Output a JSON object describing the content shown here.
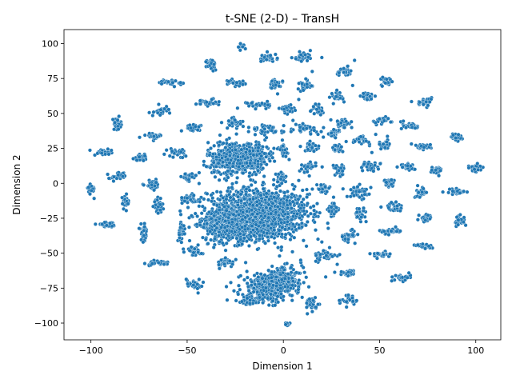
{
  "chart_data": {
    "type": "scatter",
    "title": "t-SNE (2-D) – TransH",
    "xlabel": "Dimension 1",
    "ylabel": "Dimension 2",
    "xlim": [
      -114,
      113
    ],
    "ylim": [
      -112,
      110
    ],
    "xticks": [
      -100,
      -50,
      0,
      50,
      100
    ],
    "yticks": [
      -100,
      -75,
      -50,
      -25,
      0,
      25,
      50,
      75,
      100
    ],
    "xtick_labels": [
      "−100",
      "−50",
      "0",
      "50",
      "100"
    ],
    "ytick_labels": [
      "−100",
      "−75",
      "−50",
      "−25",
      "0",
      "25",
      "50",
      "75",
      "100"
    ],
    "grid": false,
    "legend": "none",
    "marker_color": "#1f77b4",
    "marker_edge": "#ffffff",
    "clusters": [
      {
        "cx": -13,
        "cy": -22,
        "sx": 13,
        "sy": 9,
        "n": 1400
      },
      {
        "cx": -28,
        "cy": -30,
        "sx": 7,
        "sy": 6,
        "n": 350
      },
      {
        "cx": -25,
        "cy": 18,
        "sx": 7,
        "sy": 6,
        "n": 450
      },
      {
        "cx": -15,
        "cy": 20,
        "sx": 4,
        "sy": 5,
        "n": 140
      },
      {
        "cx": -8,
        "cy": -75,
        "sx": 7,
        "sy": 5,
        "n": 320
      },
      {
        "cx": -18,
        "cy": -84,
        "sx": 3,
        "sy": 2,
        "n": 60
      },
      {
        "cx": 0,
        "cy": -68,
        "sx": 5,
        "sy": 4,
        "n": 160
      },
      {
        "cx": -100,
        "cy": -4,
        "sx": 1,
        "sy": 2,
        "n": 28
      },
      {
        "cx": -93,
        "cy": 22,
        "sx": 2.5,
        "sy": 1,
        "n": 28
      },
      {
        "cx": -92,
        "cy": -30,
        "sx": 2.5,
        "sy": 1,
        "n": 28
      },
      {
        "cx": -86,
        "cy": 42,
        "sx": 1.5,
        "sy": 2,
        "n": 28
      },
      {
        "cx": -86,
        "cy": 5,
        "sx": 2,
        "sy": 1.5,
        "n": 28
      },
      {
        "cx": -82,
        "cy": -13,
        "sx": 1,
        "sy": 2.5,
        "n": 28
      },
      {
        "cx": -74,
        "cy": 18,
        "sx": 2,
        "sy": 1.5,
        "n": 28
      },
      {
        "cx": -72,
        "cy": -36,
        "sx": 1,
        "sy": 3,
        "n": 28
      },
      {
        "cx": -68,
        "cy": 34,
        "sx": 2.5,
        "sy": 1,
        "n": 28
      },
      {
        "cx": -68,
        "cy": -1,
        "sx": 2,
        "sy": 1.5,
        "n": 28
      },
      {
        "cx": -66,
        "cy": -57,
        "sx": 4,
        "sy": 1,
        "n": 32
      },
      {
        "cx": -65,
        "cy": -17,
        "sx": 1,
        "sy": 2.5,
        "n": 28
      },
      {
        "cx": -63,
        "cy": 52,
        "sx": 2,
        "sy": 1.5,
        "n": 28
      },
      {
        "cx": -59,
        "cy": 72,
        "sx": 3,
        "sy": 1,
        "n": 28
      },
      {
        "cx": -55,
        "cy": 22,
        "sx": 2.5,
        "sy": 1.5,
        "n": 28
      },
      {
        "cx": -53,
        "cy": -33,
        "sx": 1,
        "sy": 4,
        "n": 28
      },
      {
        "cx": -49,
        "cy": 4,
        "sx": 2,
        "sy": 2,
        "n": 28
      },
      {
        "cx": -49,
        "cy": -11,
        "sx": 1.5,
        "sy": 2,
        "n": 28
      },
      {
        "cx": -47,
        "cy": 40,
        "sx": 2.5,
        "sy": 1,
        "n": 28
      },
      {
        "cx": -47,
        "cy": -48,
        "sx": 2.5,
        "sy": 2,
        "n": 28
      },
      {
        "cx": -46,
        "cy": -72,
        "sx": 2.5,
        "sy": 2,
        "n": 28
      },
      {
        "cx": -40,
        "cy": 58,
        "sx": 2.5,
        "sy": 1.5,
        "n": 28
      },
      {
        "cx": -37,
        "cy": 85,
        "sx": 1.5,
        "sy": 2,
        "n": 28
      },
      {
        "cx": -30,
        "cy": -57,
        "sx": 2.5,
        "sy": 1.5,
        "n": 28
      },
      {
        "cx": -26,
        "cy": 43,
        "sx": 2.5,
        "sy": 2,
        "n": 36
      },
      {
        "cx": -24,
        "cy": 72,
        "sx": 2.5,
        "sy": 1.5,
        "n": 28
      },
      {
        "cx": -21,
        "cy": 98,
        "sx": 1,
        "sy": 1,
        "n": 10
      },
      {
        "cx": -13,
        "cy": 56,
        "sx": 3,
        "sy": 1.5,
        "n": 30
      },
      {
        "cx": -8,
        "cy": 90,
        "sx": 2.5,
        "sy": 1.5,
        "n": 28
      },
      {
        "cx": -8,
        "cy": 38,
        "sx": 4,
        "sy": 2,
        "n": 40
      },
      {
        "cx": -4,
        "cy": 71,
        "sx": 2,
        "sy": 1.5,
        "n": 28
      },
      {
        "cx": 0,
        "cy": 23,
        "sx": 1.5,
        "sy": 2,
        "n": 28
      },
      {
        "cx": -1,
        "cy": 5,
        "sx": 1.5,
        "sy": 2,
        "n": 28
      },
      {
        "cx": 2,
        "cy": 53,
        "sx": 2,
        "sy": 1.5,
        "n": 28
      },
      {
        "cx": 2,
        "cy": -101,
        "sx": 0.7,
        "sy": 0.7,
        "n": 8
      },
      {
        "cx": 10,
        "cy": 90,
        "sx": 2.5,
        "sy": 1.5,
        "n": 28
      },
      {
        "cx": 11,
        "cy": 70,
        "sx": 2,
        "sy": 2,
        "n": 28
      },
      {
        "cx": 12,
        "cy": 39,
        "sx": 3,
        "sy": 1.5,
        "n": 32
      },
      {
        "cx": 12,
        "cy": 11,
        "sx": 2.5,
        "sy": 2,
        "n": 30
      },
      {
        "cx": 15,
        "cy": -87,
        "sx": 2,
        "sy": 2.5,
        "n": 28
      },
      {
        "cx": 15,
        "cy": 26,
        "sx": 2,
        "sy": 1.5,
        "n": 28
      },
      {
        "cx": 18,
        "cy": 53,
        "sx": 1.5,
        "sy": 2,
        "n": 28
      },
      {
        "cx": 21,
        "cy": -4,
        "sx": 2,
        "sy": 2,
        "n": 28
      },
      {
        "cx": 22,
        "cy": -52,
        "sx": 3,
        "sy": 2,
        "n": 32
      },
      {
        "cx": 26,
        "cy": -19,
        "sx": 1.5,
        "sy": 2.5,
        "n": 28
      },
      {
        "cx": 26,
        "cy": 36,
        "sx": 2,
        "sy": 1.5,
        "n": 28
      },
      {
        "cx": 28,
        "cy": 25,
        "sx": 1.5,
        "sy": 1.5,
        "n": 28
      },
      {
        "cx": 29,
        "cy": 10,
        "sx": 1.5,
        "sy": 2,
        "n": 28
      },
      {
        "cx": 28,
        "cy": 62,
        "sx": 1.5,
        "sy": 1.5,
        "n": 28
      },
      {
        "cx": 31,
        "cy": 43,
        "sx": 2.5,
        "sy": 1.5,
        "n": 28
      },
      {
        "cx": 32,
        "cy": 80,
        "sx": 2,
        "sy": 1.5,
        "n": 28
      },
      {
        "cx": 34,
        "cy": -37,
        "sx": 2,
        "sy": 2,
        "n": 28
      },
      {
        "cx": 34,
        "cy": -64,
        "sx": 2.5,
        "sy": 1,
        "n": 28
      },
      {
        "cx": 35,
        "cy": -83,
        "sx": 2.5,
        "sy": 2,
        "n": 28
      },
      {
        "cx": 39,
        "cy": -6,
        "sx": 3,
        "sy": 2,
        "n": 36
      },
      {
        "cx": 40,
        "cy": 31,
        "sx": 2.5,
        "sy": 1.5,
        "n": 28
      },
      {
        "cx": 40,
        "cy": -22,
        "sx": 1.5,
        "sy": 2,
        "n": 28
      },
      {
        "cx": 44,
        "cy": 62,
        "sx": 1.5,
        "sy": 1.5,
        "n": 28
      },
      {
        "cx": 45,
        "cy": 12,
        "sx": 2.5,
        "sy": 2,
        "n": 28
      },
      {
        "cx": 50,
        "cy": -51,
        "sx": 3,
        "sy": 1,
        "n": 28
      },
      {
        "cx": 51,
        "cy": 45,
        "sx": 2.5,
        "sy": 1.5,
        "n": 28
      },
      {
        "cx": 53,
        "cy": 27,
        "sx": 1.5,
        "sy": 2,
        "n": 28
      },
      {
        "cx": 54,
        "cy": 73,
        "sx": 1.5,
        "sy": 1.5,
        "n": 28
      },
      {
        "cx": 55,
        "cy": 0,
        "sx": 1.5,
        "sy": 1.5,
        "n": 28
      },
      {
        "cx": 55,
        "cy": -34,
        "sx": 2.5,
        "sy": 1,
        "n": 28
      },
      {
        "cx": 57,
        "cy": -17,
        "sx": 2,
        "sy": 1.5,
        "n": 28
      },
      {
        "cx": 61,
        "cy": -68,
        "sx": 2.5,
        "sy": 1.5,
        "n": 28
      },
      {
        "cx": 65,
        "cy": 12,
        "sx": 2,
        "sy": 1.5,
        "n": 28
      },
      {
        "cx": 66,
        "cy": 41,
        "sx": 2,
        "sy": 1.5,
        "n": 28
      },
      {
        "cx": 72,
        "cy": -6,
        "sx": 1.5,
        "sy": 2,
        "n": 28
      },
      {
        "cx": 73,
        "cy": 58,
        "sx": 2,
        "sy": 1.5,
        "n": 28
      },
      {
        "cx": 73,
        "cy": 26,
        "sx": 2,
        "sy": 1,
        "n": 28
      },
      {
        "cx": 74,
        "cy": -25,
        "sx": 1.5,
        "sy": 2,
        "n": 28
      },
      {
        "cx": 74,
        "cy": -45,
        "sx": 2.5,
        "sy": 1,
        "n": 28
      },
      {
        "cx": 80,
        "cy": 9,
        "sx": 1.5,
        "sy": 1.5,
        "n": 28
      },
      {
        "cx": 90,
        "cy": 33,
        "sx": 1.5,
        "sy": 1.5,
        "n": 28
      },
      {
        "cx": 90,
        "cy": -6,
        "sx": 2.5,
        "sy": 1,
        "n": 28
      },
      {
        "cx": 92,
        "cy": -27,
        "sx": 1.5,
        "sy": 2,
        "n": 28
      },
      {
        "cx": 100,
        "cy": 11,
        "sx": 1.5,
        "sy": 1.5,
        "n": 28
      }
    ],
    "sparse_points": [
      [
        20,
        -42
      ],
      [
        24,
        -46
      ],
      [
        18,
        -40
      ],
      [
        22,
        -67
      ],
      [
        8,
        2
      ],
      [
        10,
        -5
      ],
      [
        5,
        45
      ],
      [
        18,
        35
      ],
      [
        -18,
        40
      ],
      [
        15,
        80
      ],
      [
        20,
        90
      ],
      [
        14,
        95
      ],
      [
        -2,
        -52
      ],
      [
        9,
        -55
      ],
      [
        28,
        -58
      ],
      [
        4,
        37
      ],
      [
        -30,
        -48
      ],
      [
        -36,
        8
      ],
      [
        46,
        22
      ],
      [
        48,
        35
      ],
      [
        3,
        17
      ],
      [
        -10,
        5
      ],
      [
        31,
        -4
      ],
      [
        12,
        -45
      ],
      [
        -3,
        64
      ],
      [
        36,
        70
      ],
      [
        8,
        60
      ],
      [
        26,
        57
      ],
      [
        -40,
        12
      ],
      [
        37,
        88
      ]
    ]
  }
}
